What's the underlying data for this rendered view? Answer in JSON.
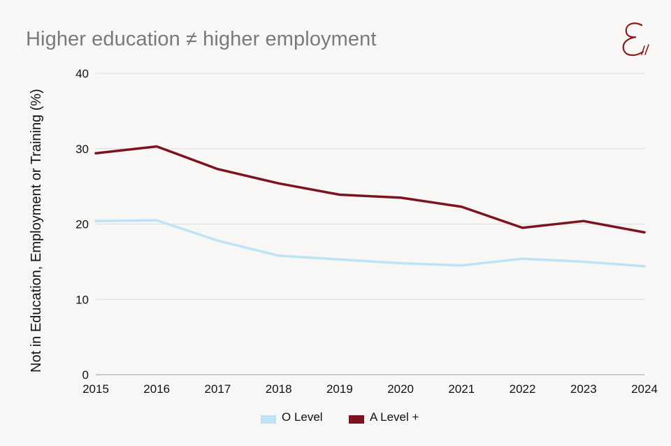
{
  "header": {
    "title": "Higher education ≠ higher employment"
  },
  "logo": {
    "icon": "e-monogram-logo",
    "color": "#8b1c1c"
  },
  "chart_data": {
    "type": "line",
    "title": "Higher education ≠ higher employment",
    "xlabel": "",
    "ylabel": "Not in Education, Employment or Training (%)",
    "ylim": [
      0,
      40
    ],
    "yticks": [
      0,
      10,
      20,
      30,
      40
    ],
    "x": [
      2015,
      2016,
      2017,
      2018,
      2019,
      2020,
      2021,
      2022,
      2023,
      2024
    ],
    "grid": true,
    "legend_position": "bottom",
    "series": [
      {
        "name": "O Level",
        "color": "#bde3f7",
        "values": [
          20.4,
          20.5,
          17.8,
          15.8,
          15.3,
          14.8,
          14.5,
          15.4,
          15.0,
          14.4
        ]
      },
      {
        "name": "A Level +",
        "color": "#7b1420",
        "values": [
          29.4,
          30.3,
          27.3,
          25.4,
          23.9,
          23.5,
          22.3,
          19.5,
          20.4,
          18.9
        ]
      }
    ]
  }
}
